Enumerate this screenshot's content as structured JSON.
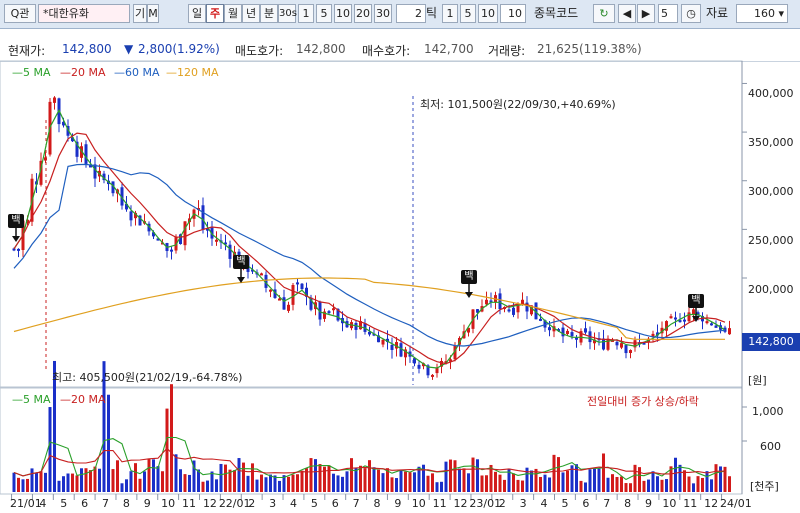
{
  "toolbar": {
    "search_label": "Q관",
    "stock_name": "*대한유화",
    "btn_gi": "기",
    "btn_m": "M",
    "period_tabs": [
      "일",
      "주",
      "월",
      "년",
      "분",
      "30s"
    ],
    "interval_btns": [
      "1",
      "5",
      "10",
      "20",
      "30"
    ],
    "tick_value": "2",
    "tick_label": "틱",
    "tick_btns": [
      "1",
      "5",
      "10"
    ],
    "tick_input": "10",
    "code_label": "종목코드",
    "count_value": "5",
    "data_label": "자료",
    "data_value": "160"
  },
  "info": {
    "price_label": "현재가:",
    "price": "142,800",
    "change": "2,800(1.92%)",
    "ask_label": "매도호가:",
    "ask": "142,800",
    "bid_label": "매수호가:",
    "bid": "142,700",
    "vol_label": "거래량:",
    "vol": "21,625(119.38%)"
  },
  "price_legend": [
    "5 MA",
    "20 MA",
    "60 MA",
    "120 MA"
  ],
  "volume_legend": [
    "5 MA",
    "20 MA"
  ],
  "volume_note": "전일대비 증가 상승/하락",
  "price_axis": [
    "400,000",
    "350,000",
    "300,000",
    "250,000",
    "200,000"
  ],
  "price_unit": "[원]",
  "current_price_tag": "142,800",
  "volume_axis": [
    "1,000",
    "600"
  ],
  "volume_unit": "[천주]",
  "x_labels": [
    "21/01",
    "4",
    "5",
    "6",
    "7",
    "8",
    "9",
    "10",
    "11",
    "12",
    "22/01",
    "2",
    "3",
    "4",
    "5",
    "6",
    "7",
    "8",
    "9",
    "10",
    "11",
    "12",
    "23/01",
    "2",
    "3",
    "4",
    "5",
    "6",
    "7",
    "8",
    "9",
    "10",
    "11",
    "12",
    "24/01"
  ],
  "annotations": {
    "low": "최저: 101,500원(22/09/30,+40.69%)",
    "high": "최고: 405,500원(21/02/19,-64.78%)",
    "marker": "백"
  },
  "colors": {
    "up": "#d21a1a",
    "down": "#1a2fc8",
    "ma5": "#2aa02a",
    "ma20": "#c82020",
    "ma60": "#1f5fbf",
    "ma120": "#e0a020",
    "tag_bg": "#1a3fb0"
  },
  "chart_data": {
    "type": "candlestick",
    "title": "",
    "ylabel": "원",
    "ylim": [
      90000,
      420000
    ],
    "series": [
      {
        "name": "5 MA"
      },
      {
        "name": "20 MA"
      },
      {
        "name": "60 MA"
      },
      {
        "name": "120 MA"
      }
    ],
    "weekly_close": [
      230000,
      258000,
      300000,
      325000,
      385000,
      360000,
      345000,
      330000,
      318000,
      305000,
      300000,
      290000,
      275000,
      265000,
      258000,
      248000,
      235000,
      228000,
      240000,
      262000,
      270000,
      250000,
      240000,
      235000,
      225000,
      215000,
      210000,
      200000,
      190000,
      180000,
      172000,
      190000,
      185000,
      170000,
      160000,
      165000,
      155000,
      150000,
      152000,
      145000,
      140000,
      135000,
      130000,
      125000,
      118000,
      112000,
      105000,
      110000,
      115000,
      135000,
      150000,
      165000,
      172000,
      178000,
      172000,
      168000,
      176000,
      170000,
      160000,
      152000,
      145000,
      140000,
      138000,
      140000,
      136000,
      132000,
      138000,
      135000,
      128000,
      132000,
      136000,
      140000,
      150000,
      155000,
      160000,
      165000,
      160000,
      155000,
      150000,
      142800
    ],
    "volume_ma": {
      "name": "5 MA"
    }
  }
}
